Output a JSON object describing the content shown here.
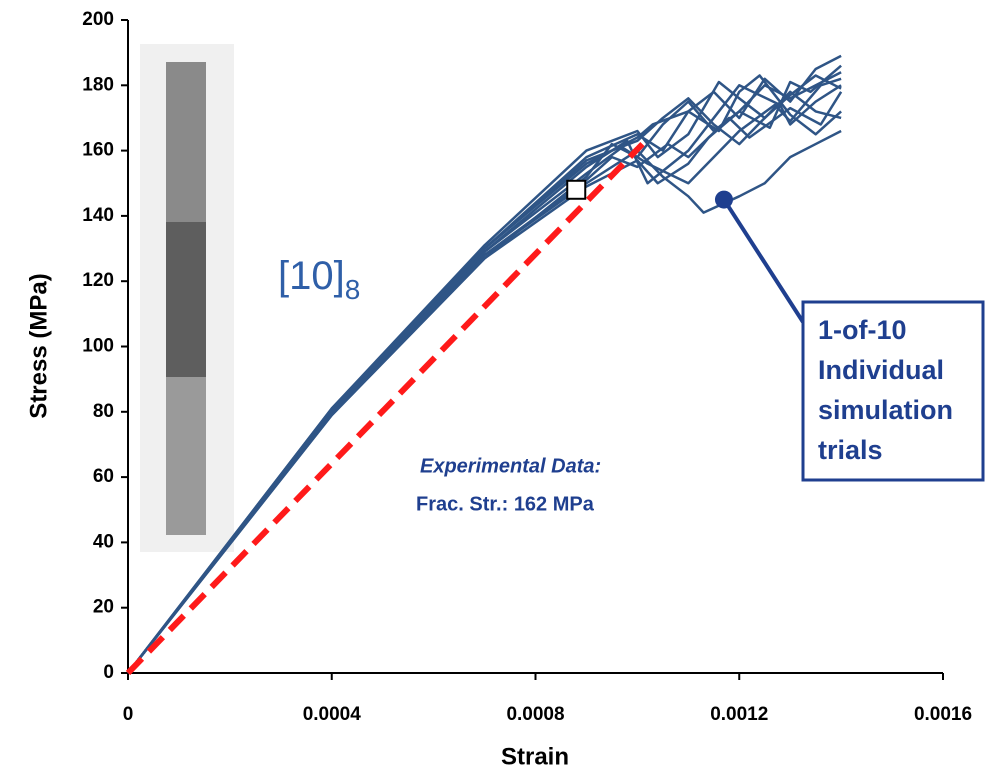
{
  "chart_data": {
    "type": "line",
    "xlabel": "Strain",
    "ylabel": "Stress (MPa)",
    "xlim": [
      0,
      0.0016
    ],
    "ylim": [
      0,
      200
    ],
    "xticks": [
      0,
      0.0004,
      0.0008,
      0.0012,
      0.0016
    ],
    "yticks": [
      0,
      20,
      40,
      60,
      80,
      100,
      120,
      140,
      160,
      180,
      200
    ],
    "grid": false,
    "layup_label": {
      "text": "[10]",
      "subscript": "8"
    },
    "experimental_note": "Experimental Data:",
    "fracture_note": "Frac. Str.: 162 MPa",
    "callout": {
      "lines": [
        "1-of-10",
        "Individual",
        "simulation",
        "trials"
      ],
      "x": 0.00117,
      "y": 145
    },
    "marker": {
      "x": 0.00088,
      "y": 148
    },
    "series": [
      {
        "color": "#2f5586",
        "x": [
          0,
          0.0004,
          0.0007,
          0.0009,
          0.001,
          0.00105,
          0.0011,
          0.00115,
          0.0012,
          0.00125,
          0.0013,
          0.00135,
          0.0014
        ],
        "values": [
          0,
          80,
          130,
          158,
          165,
          160,
          172,
          178,
          170,
          182,
          175,
          185,
          189
        ]
      },
      {
        "color": "#2f5586",
        "x": [
          0,
          0.0004,
          0.0007,
          0.0009,
          0.001,
          0.00105,
          0.0011,
          0.00113,
          0.0012,
          0.00125,
          0.0013,
          0.00135,
          0.0014
        ],
        "values": [
          0,
          80,
          128,
          150,
          160,
          152,
          146,
          141,
          146,
          150,
          158,
          162,
          166
        ]
      },
      {
        "color": "#2f5586",
        "x": [
          0,
          0.0004,
          0.0007,
          0.0009,
          0.00095,
          0.001,
          0.00105,
          0.0011,
          0.00115,
          0.0012,
          0.00125,
          0.0013,
          0.0014
        ],
        "values": [
          0,
          79,
          127,
          152,
          162,
          158,
          168,
          175,
          166,
          172,
          180,
          176,
          184
        ]
      },
      {
        "color": "#2f5586",
        "x": [
          0,
          0.0004,
          0.0007,
          0.0009,
          0.00098,
          0.00102,
          0.0011,
          0.00115,
          0.0012,
          0.00128,
          0.0013,
          0.00135,
          0.0014
        ],
        "values": [
          0,
          80,
          129,
          155,
          163,
          150,
          160,
          170,
          180,
          174,
          168,
          175,
          180
        ]
      },
      {
        "color": "#2f5586",
        "x": [
          0,
          0.0004,
          0.0007,
          0.0009,
          0.001,
          0.00104,
          0.0011,
          0.00116,
          0.0012,
          0.00125,
          0.0013,
          0.00135,
          0.0014
        ],
        "values": [
          0,
          81,
          131,
          160,
          166,
          158,
          165,
          181,
          176,
          170,
          178,
          172,
          170
        ]
      },
      {
        "color": "#2f5586",
        "x": [
          0,
          0.0004,
          0.0007,
          0.0009,
          0.00095,
          0.001,
          0.00106,
          0.0011,
          0.00118,
          0.00122,
          0.0013,
          0.00136,
          0.0014
        ],
        "values": [
          0,
          80,
          128,
          151,
          158,
          155,
          162,
          158,
          170,
          164,
          173,
          168,
          178
        ]
      },
      {
        "color": "#2f5586",
        "x": [
          0,
          0.0004,
          0.0007,
          0.0009,
          0.001,
          0.00104,
          0.0011,
          0.00114,
          0.0012,
          0.00126,
          0.0013,
          0.00134,
          0.0014
        ],
        "values": [
          0,
          79,
          127,
          149,
          157,
          150,
          156,
          164,
          172,
          167,
          181,
          178,
          186
        ]
      },
      {
        "color": "#2f5586",
        "x": [
          0,
          0.0004,
          0.0007,
          0.0009,
          0.001,
          0.00103,
          0.0011,
          0.00116,
          0.0012,
          0.00124,
          0.0013,
          0.00135,
          0.0014
        ],
        "values": [
          0,
          80,
          130,
          156,
          164,
          168,
          172,
          166,
          178,
          183,
          171,
          165,
          172
        ]
      },
      {
        "color": "#2f5586",
        "x": [
          0,
          0.0004,
          0.0007,
          0.0009,
          0.00097,
          0.00102,
          0.0011,
          0.00115,
          0.0012,
          0.00127,
          0.0013,
          0.00136,
          0.0014
        ],
        "values": [
          0,
          80,
          129,
          153,
          161,
          156,
          150,
          158,
          166,
          174,
          169,
          180,
          182
        ]
      },
      {
        "color": "#2f5586",
        "x": [
          0,
          0.0004,
          0.0007,
          0.0009,
          0.001,
          0.00105,
          0.0011,
          0.00115,
          0.0012,
          0.00125,
          0.0013,
          0.00135,
          0.0014
        ],
        "values": [
          0,
          81,
          130,
          157,
          163,
          170,
          176,
          168,
          162,
          170,
          177,
          183,
          179
        ]
      },
      {
        "color": "#ff1a1a",
        "dashed": true,
        "x": [
          0,
          0.00101
        ],
        "values": [
          0,
          162
        ]
      }
    ]
  }
}
